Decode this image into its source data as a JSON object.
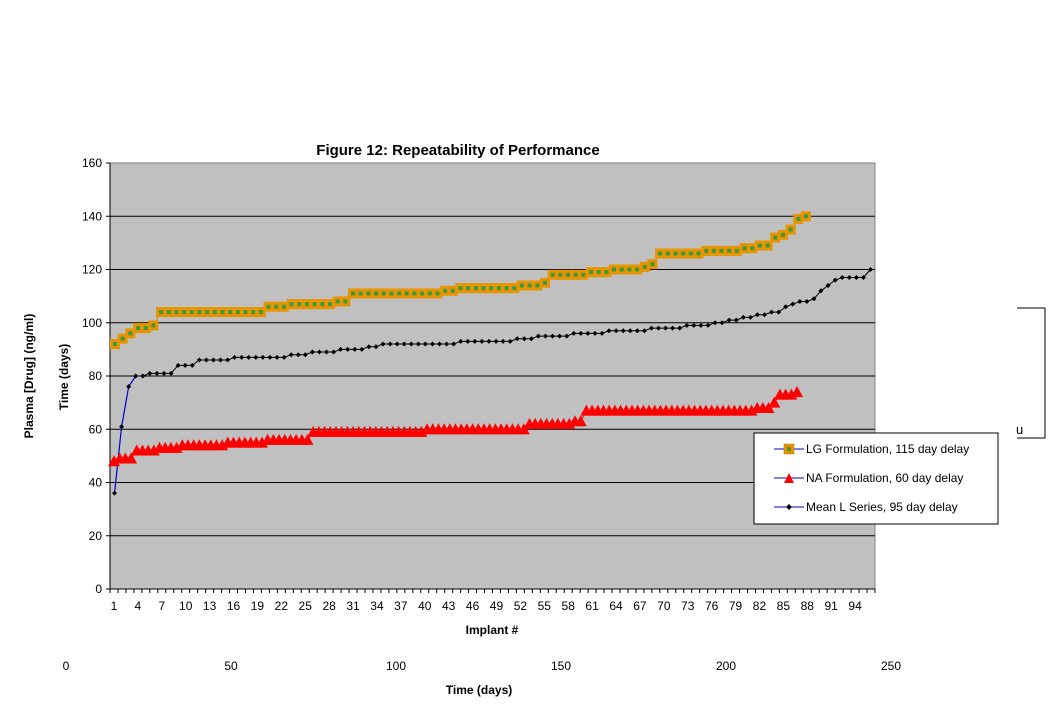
{
  "chart_data": {
    "type": "line",
    "title": "Figure 12: Repeatability of Performance",
    "xlabel": "Implant #",
    "ylabel": "Time (days)",
    "ylabel_outer": "Plasma [Drug] (ng/ml)",
    "xlabel_outer": "Time (days)",
    "ylim": [
      0,
      160
    ],
    "yticks": [
      "0",
      "20",
      "40",
      "60",
      "80",
      "100",
      "120",
      "140",
      "160"
    ],
    "xticks": [
      "1",
      "4",
      "7",
      "10",
      "13",
      "16",
      "19",
      "22",
      "25",
      "28",
      "31",
      "34",
      "37",
      "40",
      "43",
      "46",
      "49",
      "52",
      "55",
      "58",
      "61",
      "64",
      "67",
      "70",
      "73",
      "76",
      "79",
      "82",
      "85",
      "88",
      "91",
      "94"
    ],
    "outer_xticks": [
      "0",
      "50",
      "100",
      "150",
      "200",
      "250"
    ],
    "stray_label": "u",
    "grid": true,
    "legend_position": "right",
    "colors": {
      "plot_bg": "#c0c0c0",
      "lg_fill": "#e89400",
      "lg_dot": "#3c9a3c",
      "na": "#ff0000",
      "mean": "#000000",
      "mean_link": "#0000cc"
    },
    "series": [
      {
        "name": "LG Formulation, 115 day delay",
        "marker": "square",
        "x_start": 1,
        "values": [
          92,
          94,
          96,
          98,
          98,
          99,
          104,
          104,
          104,
          104,
          104,
          104,
          104,
          104,
          104,
          104,
          104,
          104,
          104,
          104,
          106,
          106,
          106,
          107,
          107,
          107,
          107,
          107,
          107,
          108,
          108,
          111,
          111,
          111,
          111,
          111,
          111,
          111,
          111,
          111,
          111,
          111,
          111,
          112,
          112,
          113,
          113,
          113,
          113,
          113,
          113,
          113,
          113,
          114,
          114,
          114,
          115,
          118,
          118,
          118,
          118,
          118,
          119,
          119,
          119,
          120,
          120,
          120,
          120,
          121,
          122,
          126,
          126,
          126,
          126,
          126,
          126,
          127,
          127,
          127,
          127,
          127,
          128,
          128,
          129,
          129,
          132,
          133,
          135,
          139,
          140
        ]
      },
      {
        "name": "NA Formulation, 60 day delay",
        "marker": "triangle",
        "x_start": 1,
        "values": [
          48,
          49,
          49,
          49,
          52,
          52,
          52,
          52,
          53,
          53,
          53,
          53,
          54,
          54,
          54,
          54,
          54,
          54,
          54,
          54,
          55,
          55,
          55,
          55,
          55,
          55,
          55,
          56,
          56,
          56,
          56,
          56,
          56,
          56,
          56,
          59,
          59,
          59,
          59,
          59,
          59,
          59,
          59,
          59,
          59,
          59,
          59,
          59,
          59,
          59,
          59,
          59,
          59,
          59,
          59,
          60,
          60,
          60,
          60,
          60,
          60,
          60,
          60,
          60,
          60,
          60,
          60,
          60,
          60,
          60,
          60,
          60,
          60,
          62,
          62,
          62,
          62,
          62,
          62,
          62,
          62,
          63,
          63,
          67,
          67,
          67,
          67,
          67,
          67,
          67,
          67,
          67,
          67,
          67,
          67,
          67,
          67,
          67,
          67,
          67,
          67,
          67,
          67,
          67,
          67,
          67,
          67,
          67,
          67,
          67,
          67,
          67,
          67,
          68,
          68,
          68,
          70,
          73,
          73,
          73,
          74
        ]
      },
      {
        "name": "Mean L Series, 95 day delay",
        "marker": "diamond",
        "x_start": 1,
        "values": [
          36,
          61,
          76,
          80,
          80,
          81,
          81,
          81,
          81,
          84,
          84,
          84,
          86,
          86,
          86,
          86,
          86,
          87,
          87,
          87,
          87,
          87,
          87,
          87,
          87,
          88,
          88,
          88,
          89,
          89,
          89,
          89,
          90,
          90,
          90,
          90,
          91,
          91,
          92,
          92,
          92,
          92,
          92,
          92,
          92,
          92,
          92,
          92,
          92,
          93,
          93,
          93,
          93,
          93,
          93,
          93,
          93,
          94,
          94,
          94,
          95,
          95,
          95,
          95,
          95,
          96,
          96,
          96,
          96,
          96,
          97,
          97,
          97,
          97,
          97,
          97,
          98,
          98,
          98,
          98,
          98,
          99,
          99,
          99,
          99,
          100,
          100,
          101,
          101,
          102,
          102,
          103,
          103,
          104,
          104,
          106,
          107,
          108,
          108,
          109,
          112,
          114,
          116,
          117,
          117,
          117,
          117,
          120
        ]
      }
    ]
  }
}
